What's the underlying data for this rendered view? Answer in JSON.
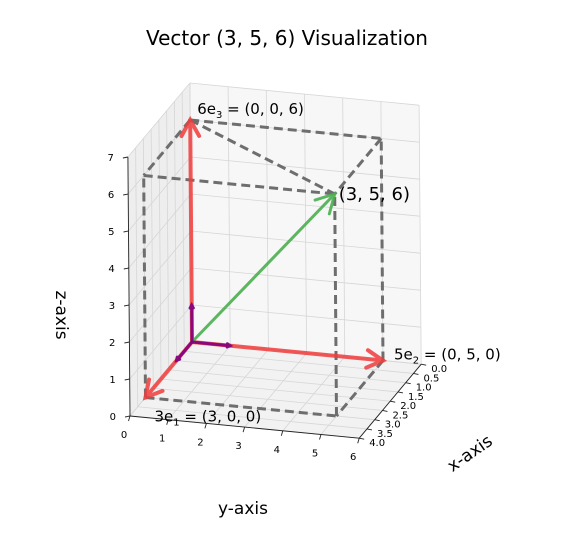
{
  "chart_data": {
    "type": "3d-vector",
    "title": "Vector $(3,5,6)$ Visualization",
    "title_display": "Vector (3, 5, 6) Visualization",
    "xlabel": "x-axis",
    "ylabel": "y-axis",
    "zlabel": "z-axis",
    "xlim": [
      0,
      4
    ],
    "ylim": [
      0,
      6
    ],
    "zlim": [
      0,
      7
    ],
    "x_ticks": [
      "0.0",
      "0.5",
      "1.0",
      "1.5",
      "2.0",
      "2.5",
      "3.0",
      "3.5",
      "4.0"
    ],
    "y_ticks": [
      "0",
      "1",
      "2",
      "3",
      "4",
      "5",
      "6"
    ],
    "z_ticks": [
      "0",
      "1",
      "2",
      "3",
      "4",
      "5",
      "6",
      "7"
    ],
    "grid": true,
    "vector": {
      "x": 3,
      "y": 5,
      "z": 6,
      "label": "(3, 5, 6)",
      "color": "#4caf50"
    },
    "components": [
      {
        "x": 3,
        "y": 0,
        "z": 0,
        "label_base": "3e",
        "label_sub": "1",
        "label_rest": " = (3, 0, 0)",
        "color": "#f03c3c"
      },
      {
        "x": 0,
        "y": 5,
        "z": 0,
        "label_base": "5e",
        "label_sub": "2",
        "label_rest": " = (0, 5, 0)",
        "color": "#f03c3c"
      },
      {
        "x": 0,
        "y": 0,
        "z": 6,
        "label_base": "6e",
        "label_sub": "3",
        "label_rest": " = (0, 0, 6)",
        "color": "#f03c3c"
      }
    ],
    "unit_vectors": [
      {
        "x": 1,
        "y": 0,
        "z": 0
      },
      {
        "x": 0,
        "y": 1,
        "z": 0
      },
      {
        "x": 0,
        "y": 0,
        "z": 1
      }
    ],
    "unit_color": "#800080",
    "box_color": "#6e6e6e"
  }
}
